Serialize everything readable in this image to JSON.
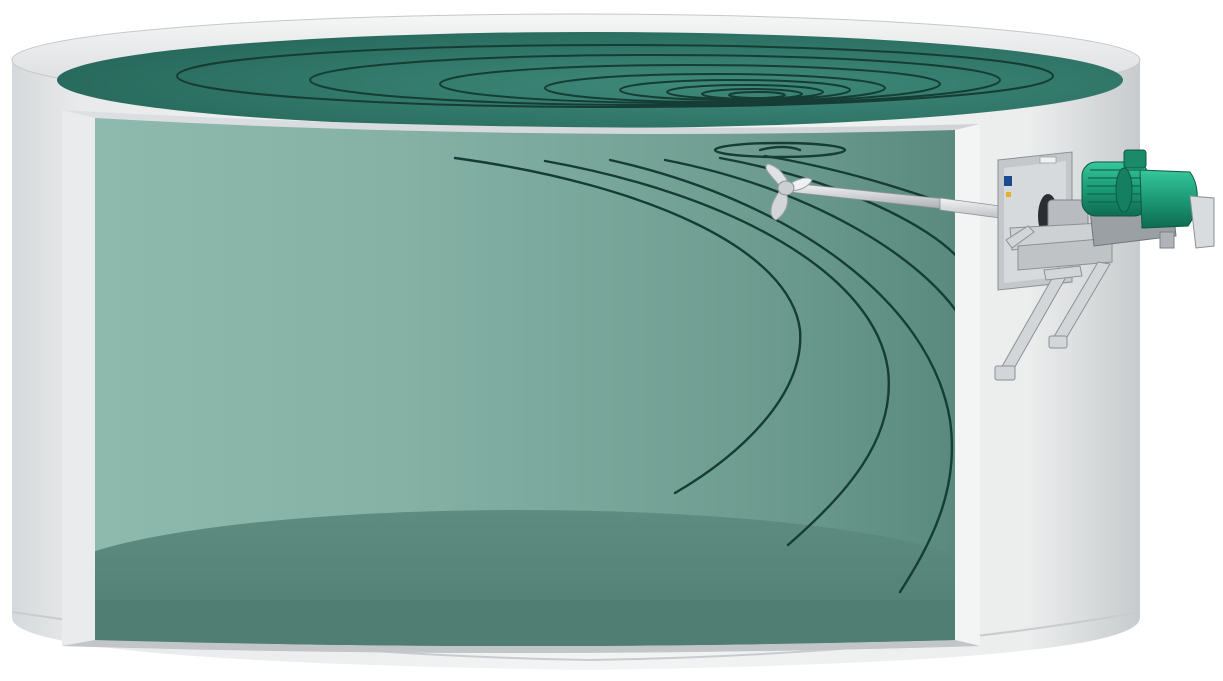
{
  "diagram": {
    "colors": {
      "background": "#ffffff",
      "concrete_light": "#f1f2f2",
      "concrete_mid": "#d9dbdc",
      "concrete_dark": "#b9bcbe",
      "liquid_top": "#2f7a6c",
      "liquid_front": "#8fb8ad",
      "liquid_bottom": "#5f8c80",
      "flow_lines": "#163d35",
      "motor_green": "#1ea07c",
      "metal": "#c4c8cb"
    },
    "components": [
      "concrete-tank",
      "liquid-surface",
      "tank-cutaway-view",
      "tank-floor",
      "flow-lines",
      "propeller",
      "mixer-shaft",
      "mounting-plate",
      "geared-motor",
      "support-brackets"
    ]
  }
}
